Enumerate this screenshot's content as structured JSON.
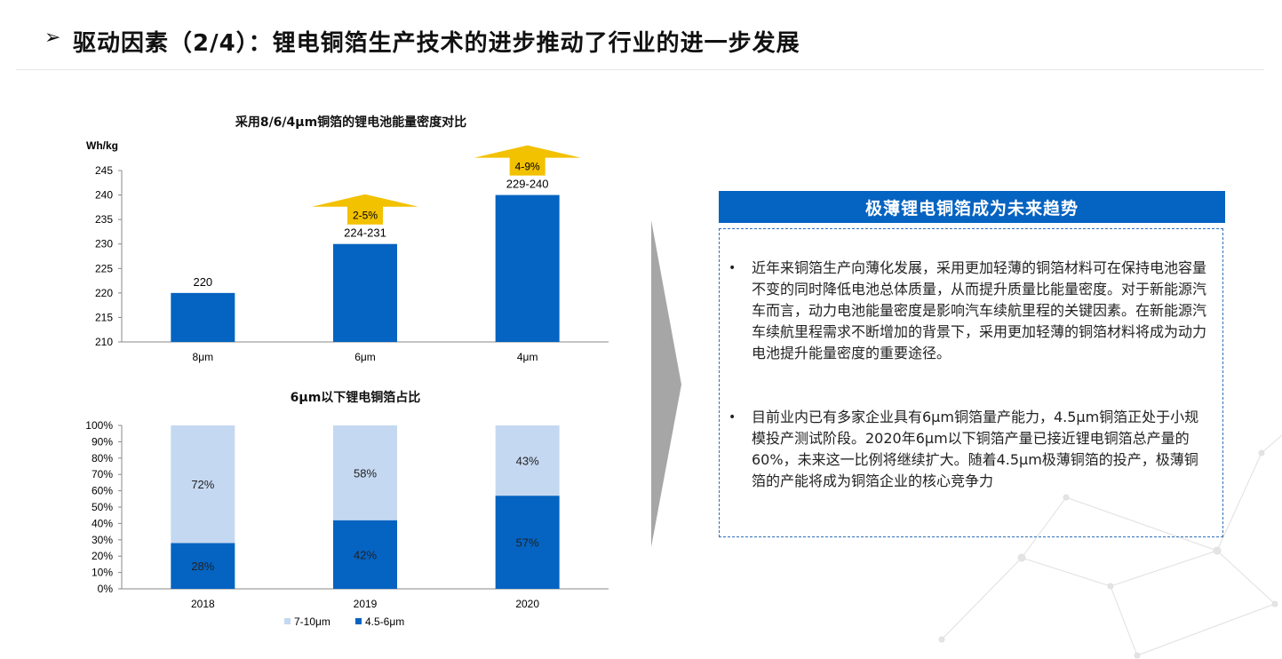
{
  "header": {
    "arrow": "➢",
    "title": "驱动因素（2/4）：锂电铜箔生产技术的进步推动了行业的进一步发展"
  },
  "chart_data": [
    {
      "type": "bar",
      "title": "采用8/6/4μm铜箔的锂电池能量密度对比",
      "ylabel": "Wh/kg",
      "ylim": [
        210,
        245
      ],
      "yticks": [
        "245",
        "240",
        "235",
        "230",
        "225",
        "220",
        "215",
        "210"
      ],
      "categories": [
        "8μm",
        "6μm",
        "4μm"
      ],
      "values": [
        220,
        230,
        240
      ],
      "data_labels": [
        "220",
        "224-231",
        "229-240"
      ],
      "annotations": [
        "2-5%",
        "4-9%"
      ],
      "color": "#0563c1",
      "arrow_color": "#f2c100",
      "grid": false
    },
    {
      "type": "bar",
      "stacked": true,
      "title": "6μm以下锂电铜箔占比",
      "ylim": [
        0,
        100
      ],
      "yticks": [
        "100%",
        "90%",
        "80%",
        "70%",
        "60%",
        "50%",
        "40%",
        "30%",
        "20%",
        "10%",
        "0%"
      ],
      "categories": [
        "2018",
        "2019",
        "2020"
      ],
      "series": [
        {
          "name": "4.5-6μm",
          "values": [
            28,
            42,
            57
          ],
          "labels": [
            "28%",
            "42%",
            "57%"
          ],
          "color": "#0563c1"
        },
        {
          "name": "7-10μm",
          "values": [
            72,
            58,
            43
          ],
          "labels": [
            "72%",
            "58%",
            "43%"
          ],
          "color": "#c5d8f1"
        }
      ],
      "legend": [
        "7-10μm",
        "4.5-6μm"
      ],
      "legend_position": "bottom",
      "grid": false
    }
  ],
  "panel": {
    "header": "极薄锂电铜箔成为未来趋势",
    "bullet_symbol": "•",
    "bullets": [
      "近年来铜箔生产向薄化发展，采用更加轻薄的铜箔材料可在保持电池容量不变的同时降低电池总体质量，从而提升质量比能量密度。对于新能源汽车而言，动力电池能量密度是影响汽车续航里程的关键因素。在新能源汽车续航里程需求不断增加的背景下，采用更加轻薄的铜箔材料将成为动力电池提升能量密度的重要途径。",
      "目前业内已有多家企业具有6μm铜箔量产能力，4.5μm铜箔正处于小规模投产测试阶段。2020年6μm以下铜箔产量已接近锂电铜箔总产量的60%，未来这一比例将继续扩大。随着4.5μm极薄铜箔的投产，极薄铜箔的产能将成为铜箔企业的核心竞争力"
    ]
  },
  "colors": {
    "accent": "#0563c1",
    "light": "#c5d8f1",
    "arrow": "#f2c100"
  }
}
